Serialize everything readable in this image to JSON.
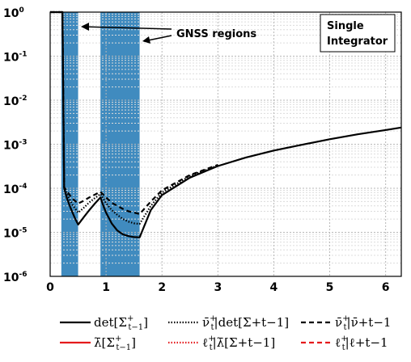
{
  "chart_data": {
    "type": "line",
    "y_scale": "log",
    "xlim": [
      0,
      6.28
    ],
    "ylim": [
      1e-06,
      1
    ],
    "grid": true,
    "x_ticks": [
      "0",
      "1",
      "2",
      "3",
      "4",
      "5",
      "6"
    ],
    "y_ticks": [
      {
        "base": "10",
        "exp": "-6"
      },
      {
        "base": "10",
        "exp": "-5"
      },
      {
        "base": "10",
        "exp": "-4"
      },
      {
        "base": "10",
        "exp": "-3"
      },
      {
        "base": "10",
        "exp": "-2"
      },
      {
        "base": "10",
        "exp": "-1"
      },
      {
        "base": "10",
        "exp": "0"
      }
    ],
    "shaded_regions": [
      {
        "x0": 0.2,
        "x1": 0.5,
        "color": "#1f77b4"
      },
      {
        "x0": 0.9,
        "x1": 1.6,
        "color": "#1f77b4"
      }
    ],
    "annotations": {
      "gnss": "GNSS regions",
      "model_line1": "Single",
      "model_line2": "Integrator"
    },
    "series": [
      {
        "name": "det[Σ+t−1]",
        "color": "#000000",
        "dash": "solid",
        "x": [
          0,
          0.2,
          0.22,
          0.25,
          0.3,
          0.35,
          0.4,
          0.45,
          0.5,
          0.6,
          0.7,
          0.8,
          0.9,
          0.95,
          1.0,
          1.1,
          1.2,
          1.3,
          1.4,
          1.5,
          1.6,
          1.8,
          2.0,
          2.5,
          3.0,
          3.5,
          4.0,
          4.5,
          5.0,
          5.5,
          6.0,
          6.28
        ],
        "y": [
          1,
          1,
          1,
          0.0001,
          6e-05,
          4e-05,
          2.8e-05,
          2e-05,
          1.5e-05,
          2.2e-05,
          3.2e-05,
          4.5e-05,
          6.2e-05,
          4e-05,
          2.8e-05,
          1.6e-05,
          1.1e-05,
          9e-06,
          8.2e-06,
          7.8e-06,
          7.7e-06,
          3.2e-05,
          7e-05,
          0.000175,
          0.00032,
          0.0005,
          0.00072,
          0.00097,
          0.0013,
          0.00168,
          0.0021,
          0.0024
        ]
      },
      {
        "name": "ν̄+t |det[Σ+t−1]",
        "color": "#000000",
        "dash": "dotted",
        "x": [
          0,
          0.2,
          0.22,
          0.25,
          0.3,
          0.35,
          0.4,
          0.5,
          0.6,
          0.7,
          0.8,
          0.9,
          1.0,
          1.1,
          1.2,
          1.3,
          1.4,
          1.5,
          1.6,
          1.8,
          2.0,
          2.5,
          3.0
        ],
        "y": [
          1,
          1,
          1,
          0.0001,
          7.5e-05,
          5.5e-05,
          4.2e-05,
          2.8e-05,
          3.6e-05,
          4.8e-05,
          6e-05,
          7.4e-05,
          4.6e-05,
          3.2e-05,
          2.5e-05,
          2e-05,
          1.75e-05,
          1.6e-05,
          1.55e-05,
          4e-05,
          8e-05,
          0.00019,
          0.00033
        ]
      },
      {
        "name": "ν̄+t |ν̄+t−1",
        "color": "#000000",
        "dash": "dashed",
        "x": [
          0,
          0.2,
          0.22,
          0.25,
          0.3,
          0.35,
          0.4,
          0.5,
          0.6,
          0.7,
          0.8,
          0.9,
          1.0,
          1.1,
          1.2,
          1.3,
          1.4,
          1.5,
          1.6,
          1.8,
          2.0,
          2.5,
          3.0
        ],
        "y": [
          1,
          1,
          1,
          0.000105,
          8.5e-05,
          7e-05,
          5.8e-05,
          4.5e-05,
          5.2e-05,
          6.2e-05,
          7.2e-05,
          8.3e-05,
          6.2e-05,
          4.7e-05,
          4e-05,
          3.4e-05,
          3e-05,
          2.8e-05,
          2.6e-05,
          5e-05,
          9e-05,
          0.0002,
          0.00034
        ]
      }
    ],
    "legend": [
      {
        "text": "det[Σ",
        "sup": "+",
        "sub": "t−1",
        "tail": "]",
        "color": "#000000",
        "dash": "solid"
      },
      {
        "text": "ν̄",
        "sup": "+",
        "sub": "t",
        "tail": "|det[Σ+t−1]",
        "color": "#000000",
        "dash": "dotted"
      },
      {
        "text": "ν̄",
        "sup": "+",
        "sub": "t",
        "tail": "|ν̄+t−1",
        "color": "#000000",
        "dash": "dashed"
      },
      {
        "text": "λ̄[Σ",
        "sup": "+",
        "sub": "t−1",
        "tail": "]",
        "color": "#e41a1c",
        "dash": "solid"
      },
      {
        "text": "ℓ",
        "sup": "+",
        "sub": "t",
        "tail": "|λ̄[Σ+t−1]",
        "color": "#e41a1c",
        "dash": "dotted"
      },
      {
        "text": "ℓ",
        "sup": "+",
        "sub": "t",
        "tail": "|ℓ+t−1",
        "color": "#e41a1c",
        "dash": "dashed"
      }
    ]
  }
}
